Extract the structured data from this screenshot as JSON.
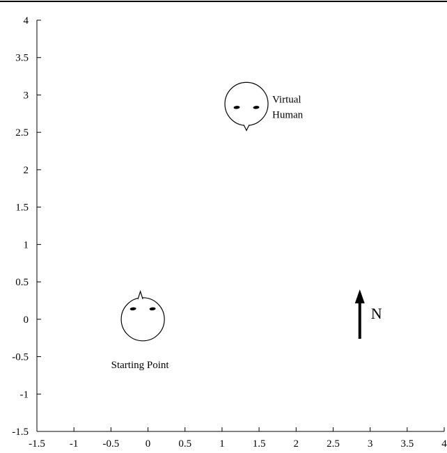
{
  "chart_data": {
    "type": "scatter",
    "xlim": [
      -1.5,
      4
    ],
    "ylim": [
      -1.5,
      4
    ],
    "x_ticks": [
      "-1.5",
      "-1",
      "-0.5",
      "0",
      "0.5",
      "1",
      "1.5",
      "2",
      "2.5",
      "3",
      "3.5",
      "4"
    ],
    "y_ticks": [
      "-1.5",
      "-1",
      "-0.5",
      "0",
      "0.5",
      "1",
      "1.5",
      "2",
      "2.5",
      "3",
      "3.5",
      "4"
    ],
    "grid": false,
    "points": [
      {
        "label": "Starting Point",
        "x": -0.07,
        "y": 0.0,
        "heading": "north",
        "label_lines": [
          "Starting Point"
        ]
      },
      {
        "label": "Virtual Human",
        "x": 1.33,
        "y": 2.88,
        "heading": "south",
        "label_lines": [
          "Virtual",
          "Human"
        ]
      }
    ],
    "compass": {
      "label": "N",
      "x": 2.86,
      "y": 0.12
    }
  }
}
